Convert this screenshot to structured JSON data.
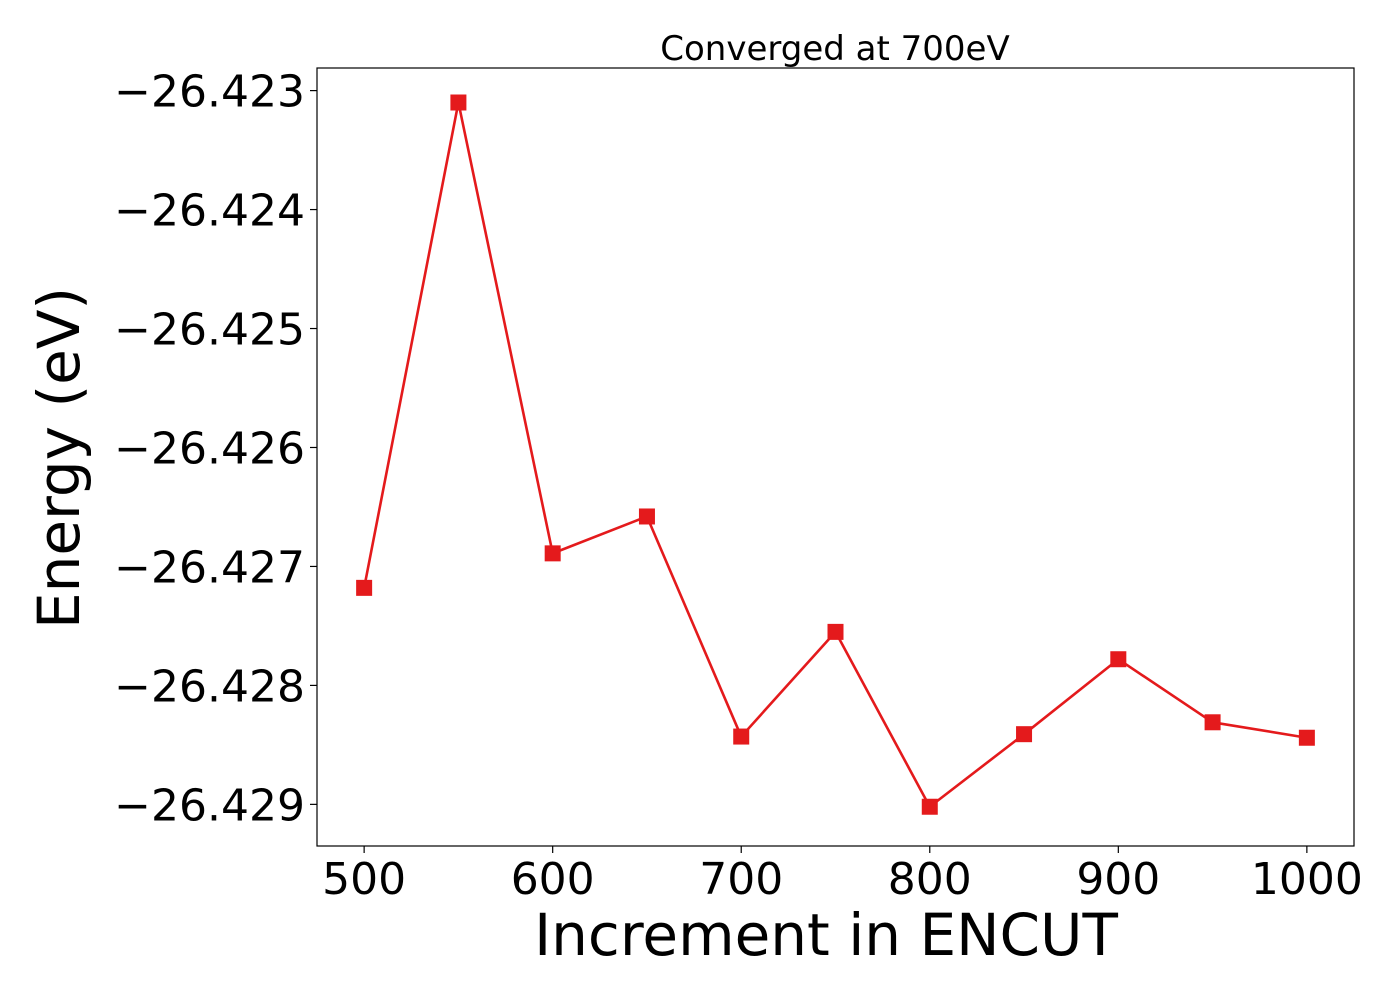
{
  "chart_data": {
    "type": "line",
    "title": "Converged at 700eV",
    "xlabel": "Increment in ENCUT",
    "ylabel": "Energy (eV)",
    "x": [
      500,
      550,
      600,
      650,
      700,
      750,
      800,
      850,
      900,
      950,
      1000
    ],
    "series": [
      {
        "values": [
          -26.42718,
          -26.4231,
          -26.42689,
          -26.42658,
          -26.42843,
          -26.42755,
          -26.42902,
          -26.42841,
          -26.42778,
          -26.42831,
          -26.42844
        ],
        "color": "#e41a1c",
        "marker": "square"
      }
    ],
    "xticks": [
      500,
      600,
      700,
      800,
      900,
      1000
    ],
    "xtick_labels": [
      "500",
      "600",
      "700",
      "800",
      "900",
      "1000"
    ],
    "yticks": [
      -26.423,
      -26.424,
      -26.425,
      -26.426,
      -26.427,
      -26.428,
      -26.429
    ],
    "ytick_labels": [
      "−26.423",
      "−26.424",
      "−26.425",
      "−26.426",
      "−26.427",
      "−26.428",
      "−26.429"
    ],
    "xlim": [
      475,
      1025
    ],
    "ylim": [
      -26.42935,
      -26.42281
    ],
    "grid": false,
    "legend": "none"
  }
}
